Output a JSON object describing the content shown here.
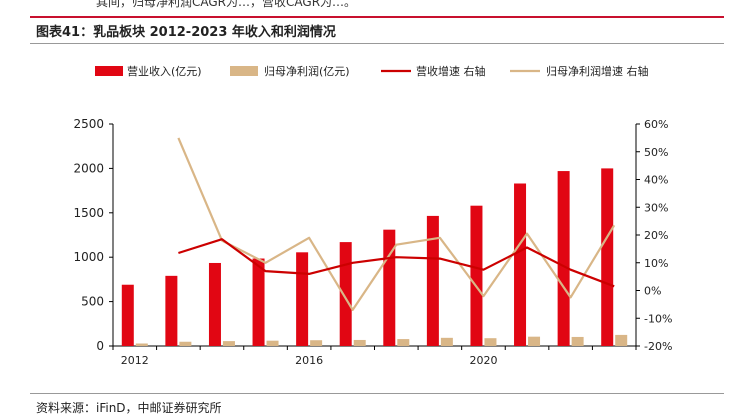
{
  "header": {
    "top_snippet": "其间，归母净利润CAGR为…，营收CAGR为…。",
    "figure_title": "图表41：乳品板块 2012-2023 年收入和利润情况"
  },
  "source": "资料来源：iFinD，中邮证券研究所",
  "colors": {
    "revenue": "#e10613",
    "profit": "#d9b687",
    "revenue_growth": "#cc0000",
    "profit_growth": "#d9b687"
  },
  "chart_data": {
    "type": "bar",
    "years": [
      2012,
      2013,
      2014,
      2015,
      2016,
      2017,
      2018,
      2019,
      2020,
      2021,
      2022,
      2023
    ],
    "series": [
      {
        "name": "营业收入(亿元)",
        "kind": "bar",
        "axis": "left",
        "values": [
          690,
          790,
          935,
          985,
          1055,
          1170,
          1310,
          1465,
          1580,
          1830,
          1970,
          2000
        ]
      },
      {
        "name": "归母净利润(亿元)",
        "kind": "bar",
        "axis": "left",
        "values": [
          28,
          48,
          55,
          60,
          65,
          68,
          78,
          92,
          88,
          105,
          102,
          125
        ]
      },
      {
        "name": "营收增速 右轴",
        "kind": "line",
        "axis": "right",
        "values": [
          null,
          13.5,
          18.5,
          7,
          6,
          10,
          12,
          11.5,
          7.5,
          15.5,
          7.5,
          1.5
        ]
      },
      {
        "name": "归母净利润增速 右轴",
        "kind": "line",
        "axis": "right",
        "values": [
          null,
          55,
          18,
          10,
          19,
          -7,
          16.5,
          19,
          -2,
          20.5,
          -2.5,
          23.5
        ]
      }
    ],
    "y_left": {
      "min": 0,
      "max": 2500,
      "ticks": [
        0,
        500,
        1000,
        1500,
        2000,
        2500
      ]
    },
    "y_right": {
      "min": -20,
      "max": 60,
      "ticks": [
        "60%",
        "50%",
        "40%",
        "30%",
        "20%",
        "10%",
        "0%",
        "-10%",
        "-20%"
      ]
    },
    "x_tick_labels": [
      "2012",
      "2016",
      "2020"
    ],
    "legend": [
      "营业收入(亿元)",
      "归母净利润(亿元)",
      "营收增速 右轴",
      "归母净利润增速 右轴"
    ],
    "legend_position": "top",
    "grid": false
  }
}
